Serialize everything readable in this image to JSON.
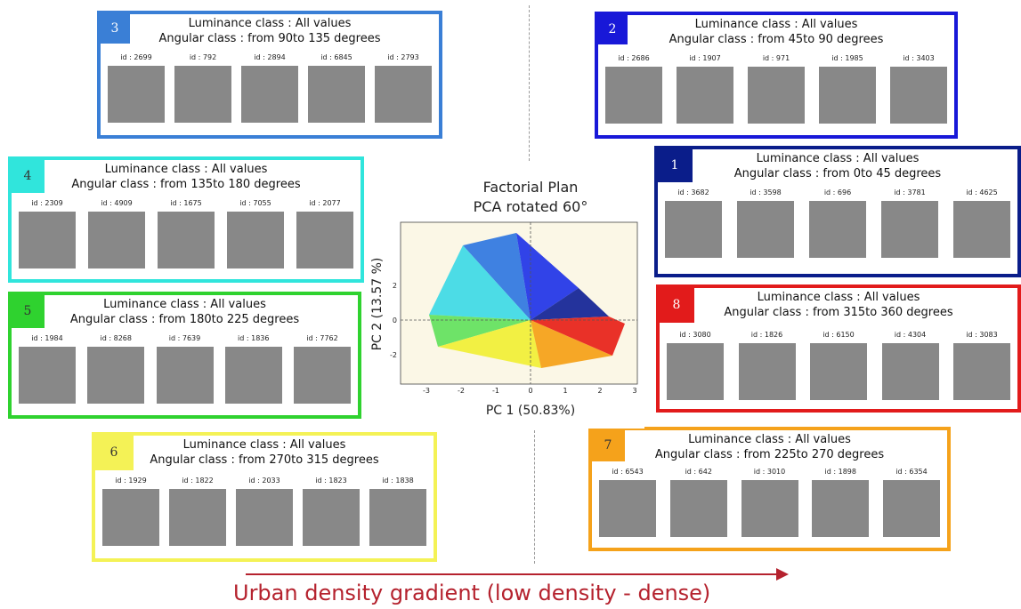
{
  "colors": {
    "arrow": "#b5222e",
    "divider": "#9a9a9a"
  },
  "panels": {
    "p3": {
      "badge": "3",
      "line1": "Luminance class : All values",
      "line2": "Angular class : from 90to 135 degrees",
      "ids": [
        "id : 2699",
        "id : 792",
        "id : 2894",
        "id : 6845",
        "id : 2793"
      ],
      "color": "#3a7fd6"
    },
    "p2": {
      "badge": "2",
      "line1": "Luminance class : All values",
      "line2": "Angular class : from 45to 90 degrees",
      "ids": [
        "id : 2686",
        "id : 1907",
        "id : 971",
        "id : 1985",
        "id : 3403"
      ],
      "color": "#1818d8"
    },
    "p4": {
      "badge": "4",
      "line1": "Luminance class : All values",
      "line2": "Angular class : from 135to 180 degrees",
      "ids": [
        "id : 2309",
        "id : 4909",
        "id : 1675",
        "id : 7055",
        "id : 2077"
      ],
      "color": "#30e5dc"
    },
    "p1": {
      "badge": "1",
      "line1": "Luminance class : All values",
      "line2": "Angular class : from 0to 45 degrees",
      "ids": [
        "id : 3682",
        "id : 3598",
        "id : 696",
        "id : 3781",
        "id : 4625"
      ],
      "color": "#0a1d8a"
    },
    "p5": {
      "badge": "5",
      "line1": "Luminance class : All values",
      "line2": "Angular class : from 180to 225 degrees",
      "ids": [
        "id : 1984",
        "id : 8268",
        "id : 7639",
        "id : 1836",
        "id : 7762"
      ],
      "color": "#2fd22f"
    },
    "p8": {
      "badge": "8",
      "line1": "Luminance class : All values",
      "line2": "Angular class : from 315to 360 degrees",
      "ids": [
        "id : 3080",
        "id : 1826",
        "id : 6150",
        "id : 4304",
        "id : 3083"
      ],
      "color": "#e21b1b"
    },
    "p6": {
      "badge": "6",
      "line1": "Luminance class : All values",
      "line2": "Angular class : from 270to 315 degrees",
      "ids": [
        "id : 1929",
        "id : 1822",
        "id : 2033",
        "id : 1823",
        "id : 1838"
      ],
      "color": "#f4f256"
    },
    "p7": {
      "badge": "7",
      "line1": "Luminance class : All values",
      "line2": "Angular class : from 225to 270 degrees",
      "ids": [
        "id : 6543",
        "id : 642",
        "id : 3010",
        "id : 1898",
        "id : 6354"
      ],
      "color": "#f5a21b"
    }
  },
  "pca": {
    "title1": "Factorial Plan",
    "title2": "PCA rotated 60°",
    "xlabel": "PC 1 (50.83%)",
    "ylabel": "PC 2 (13.57 %)",
    "xticks": [
      "-3",
      "-2",
      "-1",
      "0",
      "1",
      "2",
      "3"
    ],
    "yticks": [
      "2",
      "0",
      "-2"
    ]
  },
  "arrow_label": "Urban density gradient (low density - dense)"
}
